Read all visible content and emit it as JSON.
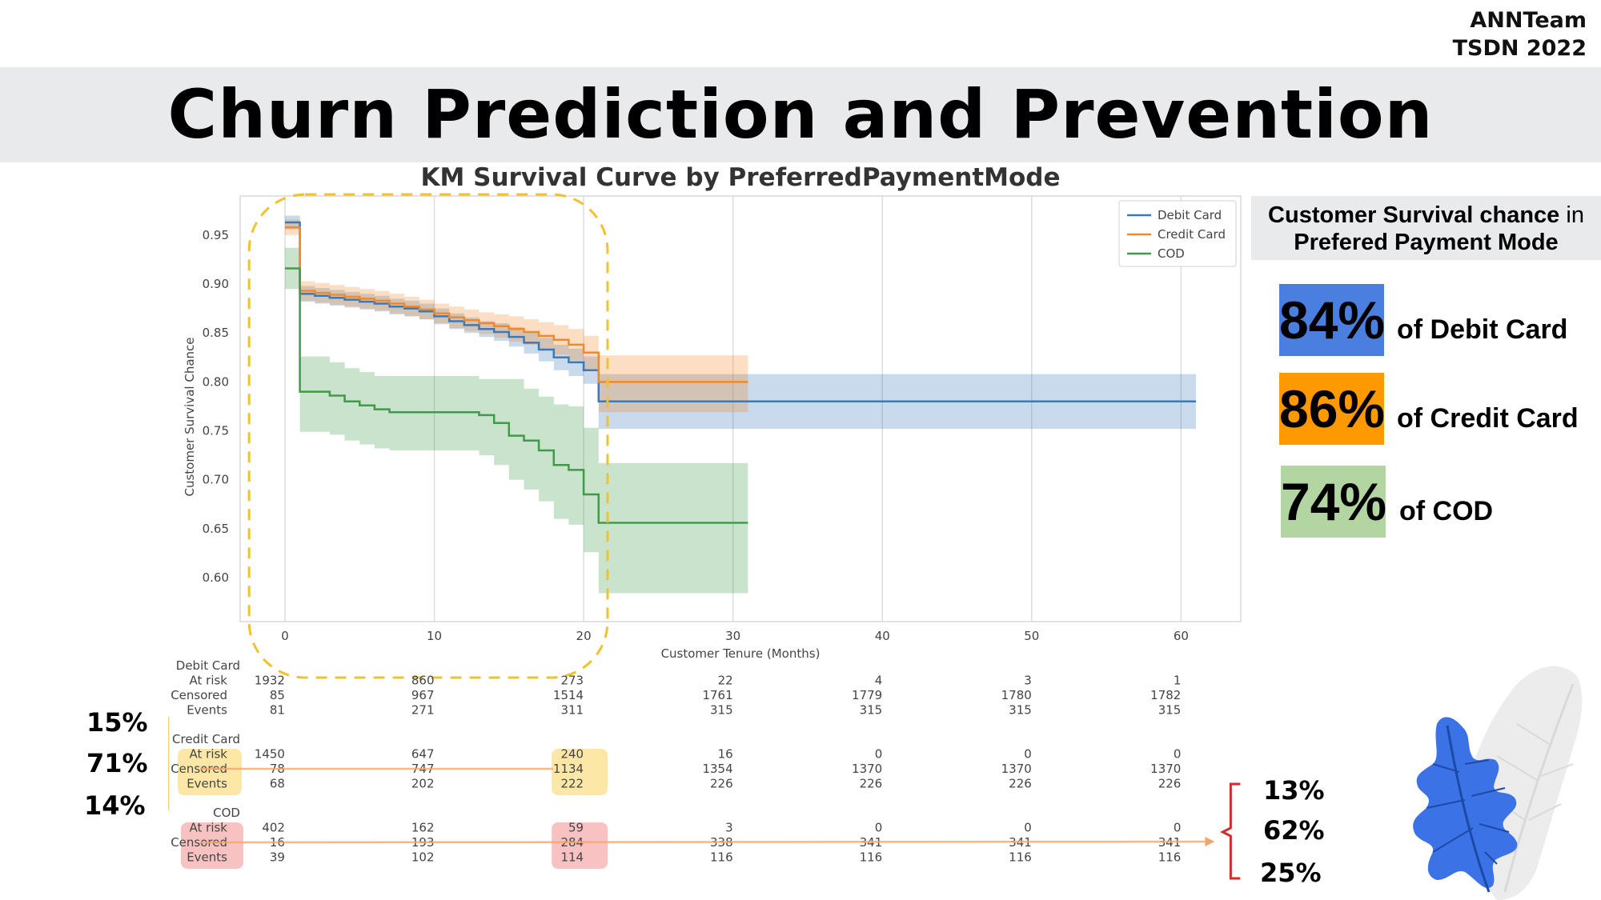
{
  "header": {
    "team": "ANNTeam",
    "event": "TSDN 2022",
    "title": "Churn Prediction and Prevention"
  },
  "colors": {
    "debit": "#3a7ab8",
    "credit": "#f0892b",
    "cod": "#3f9b47",
    "debit_card_bg": "#4a7fe0",
    "credit_card_bg": "#ff9900",
    "cod_card_bg": "#b3d5a2",
    "highlight_yellow": "#fce7a6",
    "highlight_red": "#f9c2c2",
    "dashed_box": "#f2c12e",
    "red_brace": "#d42c2c"
  },
  "chart_data": {
    "type": "line",
    "title": "KM Survival Curve by PreferredPaymentMode",
    "xlabel": "Customer Tenure (Months)",
    "ylabel": "Customer Survival Chance",
    "xlim": [
      -3,
      64
    ],
    "ylim": [
      0.555,
      0.99
    ],
    "xticks": [
      0,
      10,
      20,
      30,
      40,
      50,
      60
    ],
    "yticks": [
      0.6,
      0.65,
      0.7,
      0.75,
      0.8,
      0.85,
      0.9,
      0.95
    ],
    "ytick_labels": [
      "0.60",
      "0.65",
      "0.70",
      "0.75",
      "0.80",
      "0.85",
      "0.90",
      "0.95"
    ],
    "grid": "vertical",
    "legend_position": "top-right",
    "series": [
      {
        "name": "Debit Card",
        "color": "#3a7ab8",
        "step_x": [
          0,
          1,
          2,
          3,
          4,
          5,
          6,
          7,
          8,
          9,
          10,
          11,
          12,
          13,
          14,
          15,
          16,
          17,
          18,
          19,
          20,
          21,
          31,
          61
        ],
        "step_y": [
          0.963,
          0.89,
          0.888,
          0.886,
          0.884,
          0.882,
          0.88,
          0.877,
          0.875,
          0.872,
          0.867,
          0.862,
          0.858,
          0.854,
          0.851,
          0.846,
          0.84,
          0.833,
          0.825,
          0.82,
          0.812,
          0.78,
          0.78,
          0.78
        ],
        "ci_upper": [
          0.97,
          0.898,
          0.896,
          0.894,
          0.892,
          0.89,
          0.888,
          0.885,
          0.883,
          0.88,
          0.875,
          0.87,
          0.866,
          0.862,
          0.86,
          0.856,
          0.851,
          0.845,
          0.838,
          0.834,
          0.826,
          0.808,
          0.808,
          0.808
        ],
        "ci_lower": [
          0.956,
          0.882,
          0.88,
          0.878,
          0.876,
          0.874,
          0.872,
          0.869,
          0.867,
          0.864,
          0.859,
          0.854,
          0.85,
          0.846,
          0.842,
          0.836,
          0.829,
          0.821,
          0.812,
          0.806,
          0.798,
          0.752,
          0.752,
          0.752
        ]
      },
      {
        "name": "Credit Card",
        "color": "#f0892b",
        "step_x": [
          0,
          1,
          2,
          3,
          4,
          5,
          6,
          7,
          8,
          9,
          10,
          11,
          12,
          13,
          14,
          15,
          16,
          17,
          18,
          19,
          20,
          21,
          31
        ],
        "step_y": [
          0.958,
          0.893,
          0.891,
          0.889,
          0.887,
          0.885,
          0.883,
          0.88,
          0.877,
          0.874,
          0.87,
          0.866,
          0.863,
          0.86,
          0.857,
          0.854,
          0.851,
          0.847,
          0.843,
          0.838,
          0.83,
          0.8,
          0.8
        ],
        "ci_upper": [
          0.966,
          0.903,
          0.901,
          0.899,
          0.897,
          0.895,
          0.893,
          0.89,
          0.887,
          0.884,
          0.88,
          0.877,
          0.874,
          0.871,
          0.869,
          0.867,
          0.864,
          0.861,
          0.858,
          0.854,
          0.847,
          0.827,
          0.827
        ],
        "ci_lower": [
          0.95,
          0.883,
          0.881,
          0.879,
          0.877,
          0.875,
          0.873,
          0.87,
          0.867,
          0.864,
          0.86,
          0.855,
          0.852,
          0.849,
          0.845,
          0.841,
          0.838,
          0.833,
          0.828,
          0.822,
          0.813,
          0.769,
          0.769
        ]
      },
      {
        "name": "COD",
        "color": "#3f9b47",
        "step_x": [
          0,
          1,
          3,
          4,
          5,
          6,
          7,
          10,
          11,
          12,
          13,
          14,
          15,
          16,
          17,
          18,
          19,
          20,
          21,
          31
        ],
        "step_y": [
          0.916,
          0.79,
          0.786,
          0.78,
          0.776,
          0.772,
          0.769,
          0.769,
          0.769,
          0.769,
          0.766,
          0.758,
          0.745,
          0.74,
          0.73,
          0.715,
          0.71,
          0.685,
          0.656,
          0.656
        ],
        "ci_upper": [
          0.937,
          0.826,
          0.82,
          0.814,
          0.81,
          0.806,
          0.806,
          0.806,
          0.806,
          0.806,
          0.803,
          0.803,
          0.803,
          0.793,
          0.785,
          0.777,
          0.775,
          0.753,
          0.717,
          0.717
        ],
        "ci_lower": [
          0.895,
          0.749,
          0.746,
          0.74,
          0.736,
          0.732,
          0.73,
          0.73,
          0.73,
          0.73,
          0.725,
          0.715,
          0.7,
          0.69,
          0.678,
          0.66,
          0.654,
          0.626,
          0.584,
          0.584
        ]
      }
    ],
    "risk_table": {
      "columns_x": [
        0,
        10,
        20,
        30,
        40,
        50,
        60
      ],
      "groups": [
        {
          "name": "Debit Card",
          "rows": [
            {
              "label": "At risk",
              "values": [
                "1932",
                "860",
                "273",
                "22",
                "4",
                "3",
                "1"
              ]
            },
            {
              "label": "Censored",
              "values": [
                "85",
                "967",
                "1514",
                "1761",
                "1779",
                "1780",
                "1782"
              ]
            },
            {
              "label": "Events",
              "values": [
                "81",
                "271",
                "311",
                "315",
                "315",
                "315",
                "315"
              ]
            }
          ]
        },
        {
          "name": "Credit Card",
          "rows": [
            {
              "label": "At risk",
              "values": [
                "1450",
                "647",
                "240",
                "16",
                "0",
                "0",
                "0"
              ]
            },
            {
              "label": "Censored",
              "values": [
                "78",
                "747",
                "1134",
                "1354",
                "1370",
                "1370",
                "1370"
              ]
            },
            {
              "label": "Events",
              "values": [
                "68",
                "202",
                "222",
                "226",
                "226",
                "226",
                "226"
              ]
            }
          ]
        },
        {
          "name": "COD",
          "rows": [
            {
              "label": "At risk",
              "values": [
                "402",
                "162",
                "59",
                "3",
                "0",
                "0",
                "0"
              ]
            },
            {
              "label": "Censored",
              "values": [
                "16",
                "193",
                "284",
                "338",
                "341",
                "341",
                "341"
              ]
            },
            {
              "label": "Events",
              "values": [
                "39",
                "102",
                "114",
                "116",
                "116",
                "116",
                "116"
              ]
            }
          ]
        }
      ]
    }
  },
  "side_panel": {
    "heading_bold_1": "Customer Survival chance",
    "heading_normal": " in",
    "heading_bold_2": "Prefered Payment Mode",
    "cards": [
      {
        "percent": "84%",
        "label": "of Debit Card"
      },
      {
        "percent": "86%",
        "label": "of Credit Card"
      },
      {
        "percent": "74%",
        "label": "of COD"
      }
    ]
  },
  "left_callout": [
    "15%",
    "71%",
    "14%"
  ],
  "right_callout": [
    "13%",
    "62%",
    "25%"
  ]
}
